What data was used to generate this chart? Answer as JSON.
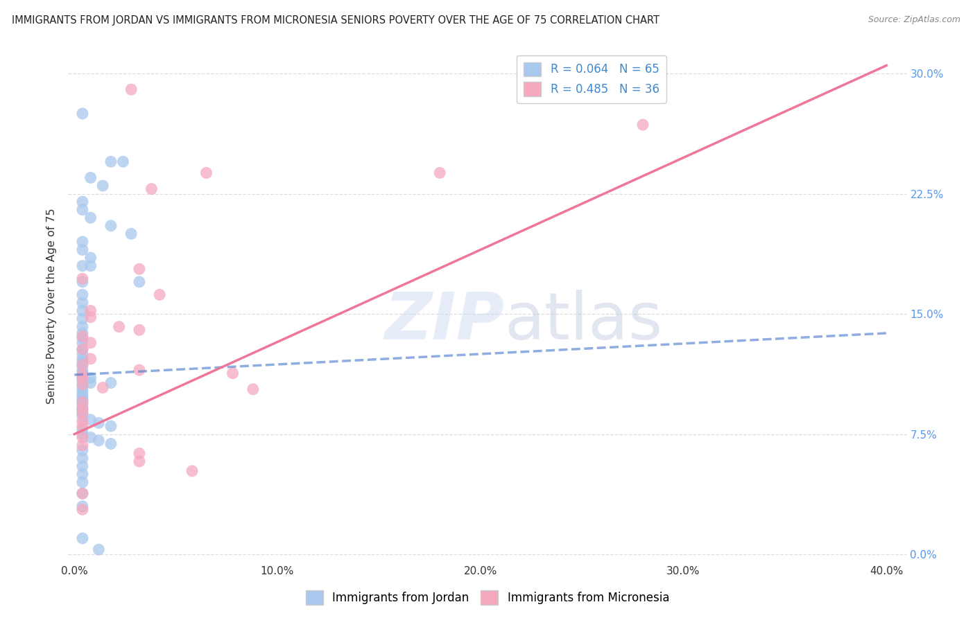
{
  "title": "IMMIGRANTS FROM JORDAN VS IMMIGRANTS FROM MICRONESIA SENIORS POVERTY OVER THE AGE OF 75 CORRELATION CHART",
  "source": "Source: ZipAtlas.com",
  "xlabel_vals": [
    0.0,
    0.1,
    0.2,
    0.3,
    0.4
  ],
  "xlabel_ticks": [
    "0.0%",
    "10.0%",
    "20.0%",
    "30.0%",
    "40.0%"
  ],
  "ylabel_vals": [
    0.0,
    0.075,
    0.15,
    0.225,
    0.3
  ],
  "ylabel_ticks": [
    "0.0%",
    "7.5%",
    "15.0%",
    "22.5%",
    "30.0%"
  ],
  "xlim": [
    -0.003,
    0.41
  ],
  "ylim": [
    -0.005,
    0.315
  ],
  "jordan_R": 0.064,
  "jordan_N": 65,
  "micronesia_R": 0.485,
  "micronesia_N": 36,
  "jordan_color": "#a8c8ee",
  "micronesia_color": "#f4a8be",
  "jordan_line_color": "#4477cc",
  "micronesia_line_color": "#ee7799",
  "jordan_scatter": [
    [
      0.004,
      0.275
    ],
    [
      0.018,
      0.245
    ],
    [
      0.024,
      0.245
    ],
    [
      0.008,
      0.235
    ],
    [
      0.014,
      0.23
    ],
    [
      0.004,
      0.22
    ],
    [
      0.004,
      0.215
    ],
    [
      0.008,
      0.21
    ],
    [
      0.018,
      0.205
    ],
    [
      0.028,
      0.2
    ],
    [
      0.004,
      0.195
    ],
    [
      0.004,
      0.19
    ],
    [
      0.008,
      0.185
    ],
    [
      0.004,
      0.18
    ],
    [
      0.008,
      0.18
    ],
    [
      0.004,
      0.17
    ],
    [
      0.032,
      0.17
    ],
    [
      0.004,
      0.162
    ],
    [
      0.004,
      0.157
    ],
    [
      0.004,
      0.152
    ],
    [
      0.004,
      0.147
    ],
    [
      0.004,
      0.142
    ],
    [
      0.004,
      0.138
    ],
    [
      0.004,
      0.135
    ],
    [
      0.004,
      0.132
    ],
    [
      0.004,
      0.128
    ],
    [
      0.004,
      0.125
    ],
    [
      0.004,
      0.122
    ],
    [
      0.004,
      0.12
    ],
    [
      0.004,
      0.118
    ],
    [
      0.004,
      0.115
    ],
    [
      0.004,
      0.113
    ],
    [
      0.004,
      0.11
    ],
    [
      0.008,
      0.11
    ],
    [
      0.004,
      0.108
    ],
    [
      0.008,
      0.107
    ],
    [
      0.018,
      0.107
    ],
    [
      0.004,
      0.105
    ],
    [
      0.004,
      0.103
    ],
    [
      0.004,
      0.101
    ],
    [
      0.004,
      0.099
    ],
    [
      0.004,
      0.097
    ],
    [
      0.004,
      0.096
    ],
    [
      0.004,
      0.094
    ],
    [
      0.004,
      0.092
    ],
    [
      0.004,
      0.09
    ],
    [
      0.004,
      0.088
    ],
    [
      0.004,
      0.086
    ],
    [
      0.008,
      0.084
    ],
    [
      0.012,
      0.082
    ],
    [
      0.018,
      0.08
    ],
    [
      0.004,
      0.078
    ],
    [
      0.004,
      0.075
    ],
    [
      0.008,
      0.073
    ],
    [
      0.012,
      0.071
    ],
    [
      0.018,
      0.069
    ],
    [
      0.004,
      0.065
    ],
    [
      0.004,
      0.06
    ],
    [
      0.004,
      0.055
    ],
    [
      0.004,
      0.05
    ],
    [
      0.004,
      0.045
    ],
    [
      0.004,
      0.038
    ],
    [
      0.004,
      0.03
    ],
    [
      0.004,
      0.01
    ],
    [
      0.012,
      0.003
    ]
  ],
  "micronesia_scatter": [
    [
      0.028,
      0.29
    ],
    [
      0.065,
      0.238
    ],
    [
      0.038,
      0.228
    ],
    [
      0.032,
      0.178
    ],
    [
      0.004,
      0.172
    ],
    [
      0.042,
      0.162
    ],
    [
      0.008,
      0.152
    ],
    [
      0.008,
      0.148
    ],
    [
      0.022,
      0.142
    ],
    [
      0.032,
      0.14
    ],
    [
      0.004,
      0.136
    ],
    [
      0.008,
      0.132
    ],
    [
      0.004,
      0.128
    ],
    [
      0.008,
      0.122
    ],
    [
      0.004,
      0.118
    ],
    [
      0.032,
      0.115
    ],
    [
      0.004,
      0.112
    ],
    [
      0.004,
      0.11
    ],
    [
      0.004,
      0.106
    ],
    [
      0.014,
      0.104
    ],
    [
      0.004,
      0.095
    ],
    [
      0.004,
      0.091
    ],
    [
      0.004,
      0.088
    ],
    [
      0.28,
      0.268
    ],
    [
      0.18,
      0.238
    ],
    [
      0.004,
      0.083
    ],
    [
      0.004,
      0.08
    ],
    [
      0.078,
      0.113
    ],
    [
      0.088,
      0.103
    ],
    [
      0.004,
      0.073
    ],
    [
      0.004,
      0.068
    ],
    [
      0.032,
      0.063
    ],
    [
      0.032,
      0.058
    ],
    [
      0.058,
      0.052
    ],
    [
      0.004,
      0.038
    ],
    [
      0.004,
      0.028
    ]
  ],
  "jordan_trend_x": [
    0.0,
    0.4
  ],
  "jordan_trend_y": [
    0.112,
    0.138
  ],
  "micronesia_trend_x": [
    0.0,
    0.4
  ],
  "micronesia_trend_y": [
    0.075,
    0.305
  ],
  "watermark_zip": "ZIP",
  "watermark_atlas": "atlas",
  "background_color": "#ffffff",
  "grid_color": "#dddddd",
  "right_tick_color": "#5599ee",
  "legend_label_color": "#4488cc"
}
